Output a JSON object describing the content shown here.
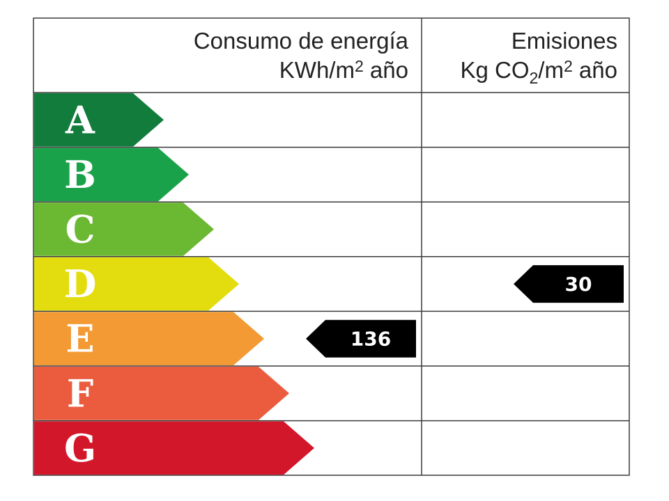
{
  "header": {
    "consumo_title": "Consumo de energía",
    "consumo_unit_prefix": "KWh/m",
    "consumo_unit_sup": "2",
    "consumo_unit_suffix": " año",
    "emisiones_title": "Emisiones",
    "emisiones_unit_kg": "Kg CO",
    "emisiones_unit_sub": "2",
    "emisiones_unit_m": "/m",
    "emisiones_unit_sup": "2",
    "emisiones_unit_suffix": " año"
  },
  "classes": [
    {
      "letter": "A",
      "color": "#127c3c"
    },
    {
      "letter": "B",
      "color": "#1aa24a"
    },
    {
      "letter": "C",
      "color": "#6bb832"
    },
    {
      "letter": "D",
      "color": "#e3dd0f"
    },
    {
      "letter": "E",
      "color": "#f39a34"
    },
    {
      "letter": "F",
      "color": "#eb5c3f"
    },
    {
      "letter": "G",
      "color": "#d3172b"
    }
  ],
  "consumo_rating": {
    "class": "E",
    "value": "136",
    "color": "#000000"
  },
  "emisiones_rating": {
    "class": "D",
    "value": "30",
    "color": "#000000"
  }
}
